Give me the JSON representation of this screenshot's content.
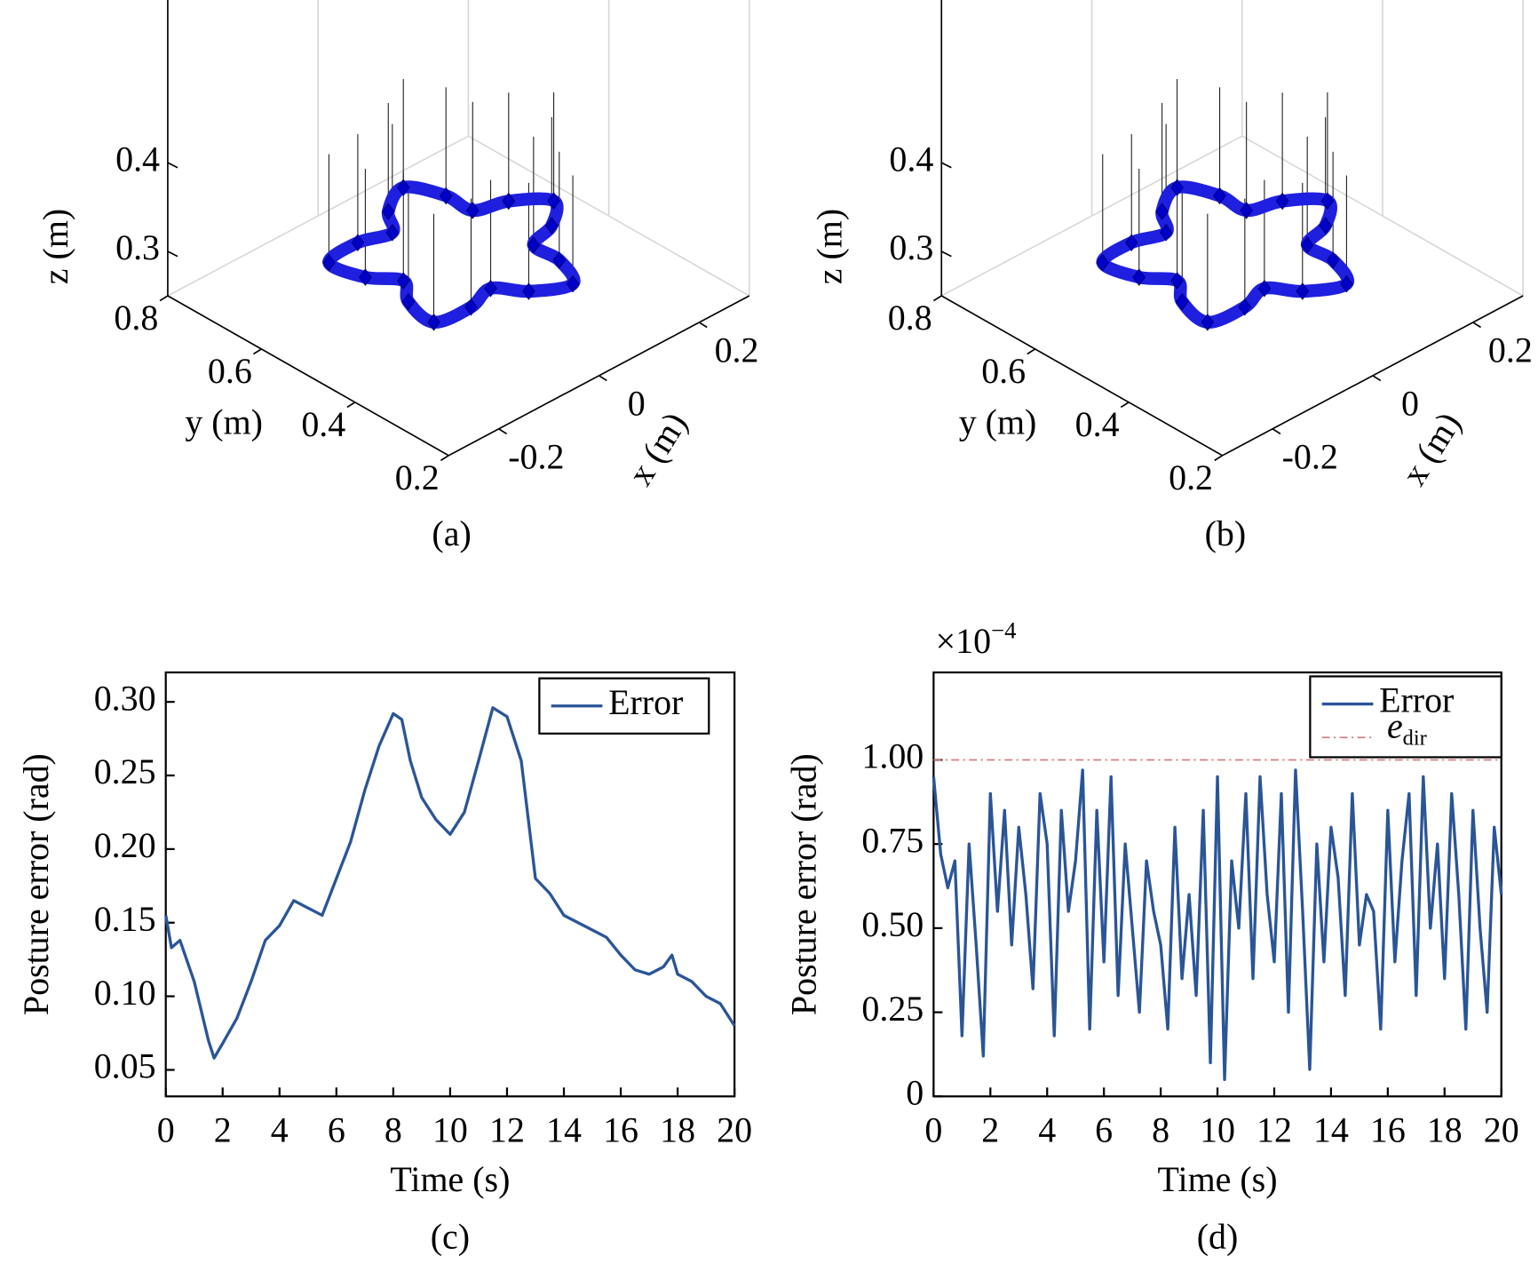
{
  "chart_data": [
    {
      "type": "line3d",
      "caption": "(a)",
      "x_label": "x (m)",
      "y_label": "y (m)",
      "z_label": "z (m)",
      "color": "#1f1fe0",
      "x": [
        0.19,
        0.143,
        0.089,
        0.088,
        0.059,
        0,
        -0.034,
        -0.088,
        -0.154,
        -0.143,
        -0.11,
        -0.143,
        -0.154,
        -0.088,
        -0.034,
        0,
        0.059,
        0.088,
        0.089,
        0.143
      ],
      "y": [
        0.5,
        0.546,
        0.565,
        0.621,
        0.681,
        0.65,
        0.605,
        0.621,
        0.612,
        0.546,
        0.5,
        0.454,
        0.388,
        0.379,
        0.395,
        0.35,
        0.319,
        0.379,
        0.435,
        0.454
      ],
      "z": [
        0.3,
        0.3,
        0.3,
        0.3,
        0.3,
        0.3,
        0.3,
        0.3,
        0.3,
        0.3,
        0.3,
        0.3,
        0.3,
        0.3,
        0.3,
        0.3,
        0.3,
        0.3,
        0.3,
        0.3
      ],
      "xlim": [
        -0.3,
        0.3
      ],
      "ylim": [
        0.2,
        0.8
      ],
      "zlim": [
        0.25,
        0.5
      ],
      "xticks": [
        -0.2,
        0,
        0.2
      ],
      "yticks": [
        0.2,
        0.4,
        0.6,
        0.8
      ],
      "zticks": [
        0.3,
        0.4
      ]
    },
    {
      "type": "line3d",
      "caption": "(b)",
      "x_label": "x (m)",
      "y_label": "y (m)",
      "z_label": "z (m)",
      "color": "#1f1fe0",
      "x": [
        0.19,
        0.143,
        0.089,
        0.088,
        0.059,
        0,
        -0.034,
        -0.088,
        -0.154,
        -0.143,
        -0.11,
        -0.143,
        -0.154,
        -0.088,
        -0.034,
        0,
        0.059,
        0.088,
        0.089,
        0.143
      ],
      "y": [
        0.5,
        0.546,
        0.565,
        0.621,
        0.681,
        0.65,
        0.605,
        0.621,
        0.612,
        0.546,
        0.5,
        0.454,
        0.388,
        0.379,
        0.395,
        0.35,
        0.319,
        0.379,
        0.435,
        0.454
      ],
      "z": [
        0.3,
        0.3,
        0.3,
        0.3,
        0.3,
        0.3,
        0.3,
        0.3,
        0.3,
        0.3,
        0.3,
        0.3,
        0.3,
        0.3,
        0.3,
        0.3,
        0.3,
        0.3,
        0.3,
        0.3
      ],
      "xlim": [
        -0.3,
        0.3
      ],
      "ylim": [
        0.2,
        0.8
      ],
      "zlim": [
        0.25,
        0.5
      ],
      "xticks": [
        -0.2,
        0,
        0.2
      ],
      "yticks": [
        0.2,
        0.4,
        0.6,
        0.8
      ],
      "zticks": [
        0.3,
        0.4
      ]
    },
    {
      "type": "line",
      "caption": "(c)",
      "x_label": "Time (s)",
      "y_label": "Posture error (rad)",
      "legend": "upper right",
      "series": [
        {
          "name": "Error",
          "color": "#2a5597",
          "x": [
            0,
            0.2,
            0.5,
            1,
            1.5,
            1.7,
            2,
            2.5,
            3,
            3.5,
            4,
            4.5,
            5,
            5.5,
            6,
            6.5,
            7,
            7.5,
            8,
            8.3,
            8.6,
            9,
            9.5,
            10,
            10.5,
            11,
            11.5,
            12,
            12.5,
            13,
            13.5,
            14,
            14.5,
            15,
            15.5,
            16,
            16.5,
            17,
            17.5,
            17.8,
            18,
            18.5,
            19,
            19.5,
            20
          ],
          "values": [
            0.155,
            0.133,
            0.138,
            0.11,
            0.07,
            0.058,
            0.068,
            0.085,
            0.11,
            0.138,
            0.148,
            0.165,
            0.16,
            0.155,
            0.18,
            0.205,
            0.24,
            0.27,
            0.292,
            0.288,
            0.26,
            0.235,
            0.22,
            0.21,
            0.225,
            0.26,
            0.296,
            0.29,
            0.26,
            0.18,
            0.17,
            0.155,
            0.15,
            0.145,
            0.14,
            0.128,
            0.118,
            0.115,
            0.12,
            0.128,
            0.115,
            0.11,
            0.1,
            0.095,
            0.08
          ]
        }
      ],
      "xlim": [
        0,
        20
      ],
      "xticks": [
        0,
        2,
        4,
        6,
        8,
        10,
        12,
        14,
        16,
        18,
        20
      ],
      "ylim": [
        0.032,
        0.32
      ],
      "yticks": [
        0.05,
        {
          "value": 0.1,
          "label": "0.10"
        },
        0.15,
        {
          "value": 0.2,
          "label": "0.20"
        },
        0.25,
        {
          "value": 0.3,
          "label": "0.30"
        }
      ]
    },
    {
      "type": "line",
      "caption": "(d)",
      "x_label": "Time (s)",
      "y_label": "Posture error (rad)",
      "legend": "upper right",
      "offset_base": "×10",
      "offset_exponent": "−4",
      "series": [
        {
          "name": "Error",
          "color": "#2a5597",
          "x": [
            0,
            0.25,
            0.5,
            0.75,
            1,
            1.25,
            1.5,
            1.75,
            2,
            2.25,
            2.5,
            2.75,
            3,
            3.25,
            3.5,
            3.75,
            4,
            4.25,
            4.5,
            4.75,
            5,
            5.25,
            5.5,
            5.75,
            6,
            6.25,
            6.5,
            6.75,
            7,
            7.25,
            7.5,
            7.75,
            8,
            8.25,
            8.5,
            8.75,
            9,
            9.25,
            9.5,
            9.75,
            10,
            10.25,
            10.5,
            10.75,
            11,
            11.25,
            11.5,
            11.75,
            12,
            12.25,
            12.5,
            12.75,
            13,
            13.25,
            13.5,
            13.75,
            14,
            14.25,
            14.5,
            14.75,
            15,
            15.25,
            15.5,
            15.75,
            16,
            16.25,
            16.5,
            16.75,
            17,
            17.25,
            17.5,
            17.75,
            18,
            18.25,
            18.5,
            18.75,
            19,
            19.25,
            19.5,
            19.75,
            20
          ],
          "values": [
            0.95,
            0.72,
            0.62,
            0.7,
            0.18,
            0.75,
            0.45,
            0.12,
            0.9,
            0.55,
            0.85,
            0.45,
            0.8,
            0.6,
            0.32,
            0.9,
            0.75,
            0.18,
            0.85,
            0.55,
            0.7,
            0.97,
            0.2,
            0.85,
            0.4,
            0.95,
            0.3,
            0.75,
            0.5,
            0.25,
            0.7,
            0.55,
            0.45,
            0.2,
            0.8,
            0.35,
            0.6,
            0.3,
            0.85,
            0.1,
            0.95,
            0.05,
            0.7,
            0.5,
            0.9,
            0.35,
            0.95,
            0.6,
            0.4,
            0.9,
            0.25,
            0.97,
            0.55,
            0.08,
            0.75,
            0.4,
            0.8,
            0.65,
            0.3,
            0.9,
            0.45,
            0.6,
            0.55,
            0.2,
            0.85,
            0.4,
            0.7,
            0.9,
            0.3,
            0.95,
            0.5,
            0.75,
            0.35,
            0.9,
            0.6,
            0.2,
            0.85,
            0.5,
            0.25,
            0.8,
            0.6
          ]
        }
      ],
      "threshold": {
        "name": "e",
        "subscript": "dir",
        "value": 1.0,
        "color": "#d08080"
      },
      "xlim": [
        0,
        20
      ],
      "xticks": [
        0,
        2,
        4,
        6,
        8,
        10,
        12,
        14,
        16,
        18,
        20
      ],
      "ylim": [
        0,
        1.26
      ],
      "yticks": [
        0,
        0.25,
        {
          "value": 0.5,
          "label": "0.50"
        },
        0.75,
        {
          "value": 1.0,
          "label": "1.00"
        }
      ]
    }
  ]
}
